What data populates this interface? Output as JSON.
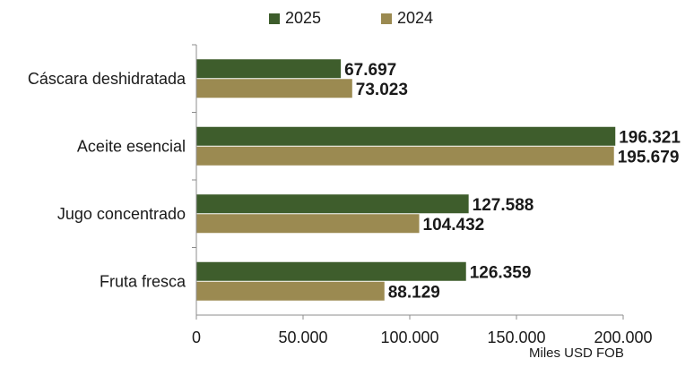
{
  "chart_data": {
    "type": "bar",
    "orientation": "horizontal",
    "categories": [
      "Cáscara deshidratada",
      "Aceite esencial",
      "Jugo concentrado",
      "Fruta fresca"
    ],
    "series": [
      {
        "name": "2025",
        "color": "#3e5d2c",
        "values": [
          67697,
          196321,
          127588,
          126359
        ],
        "labels": [
          "67.697",
          "196.321",
          "127.588",
          "126.359"
        ]
      },
      {
        "name": "2024",
        "color": "#9b8a51",
        "values": [
          73023,
          195679,
          104432,
          88129
        ],
        "labels": [
          "73.023",
          "195.679",
          "104.432",
          "88.129"
        ]
      }
    ],
    "xlim": [
      0,
      200000
    ],
    "xticks": [
      0,
      50000,
      100000,
      150000,
      200000
    ],
    "xtick_labels": [
      "0",
      "50.000",
      "100.000",
      "150.000",
      "200.000"
    ],
    "xlabel": "Miles USD FOB",
    "legend_position": "top-center",
    "grid": false
  }
}
